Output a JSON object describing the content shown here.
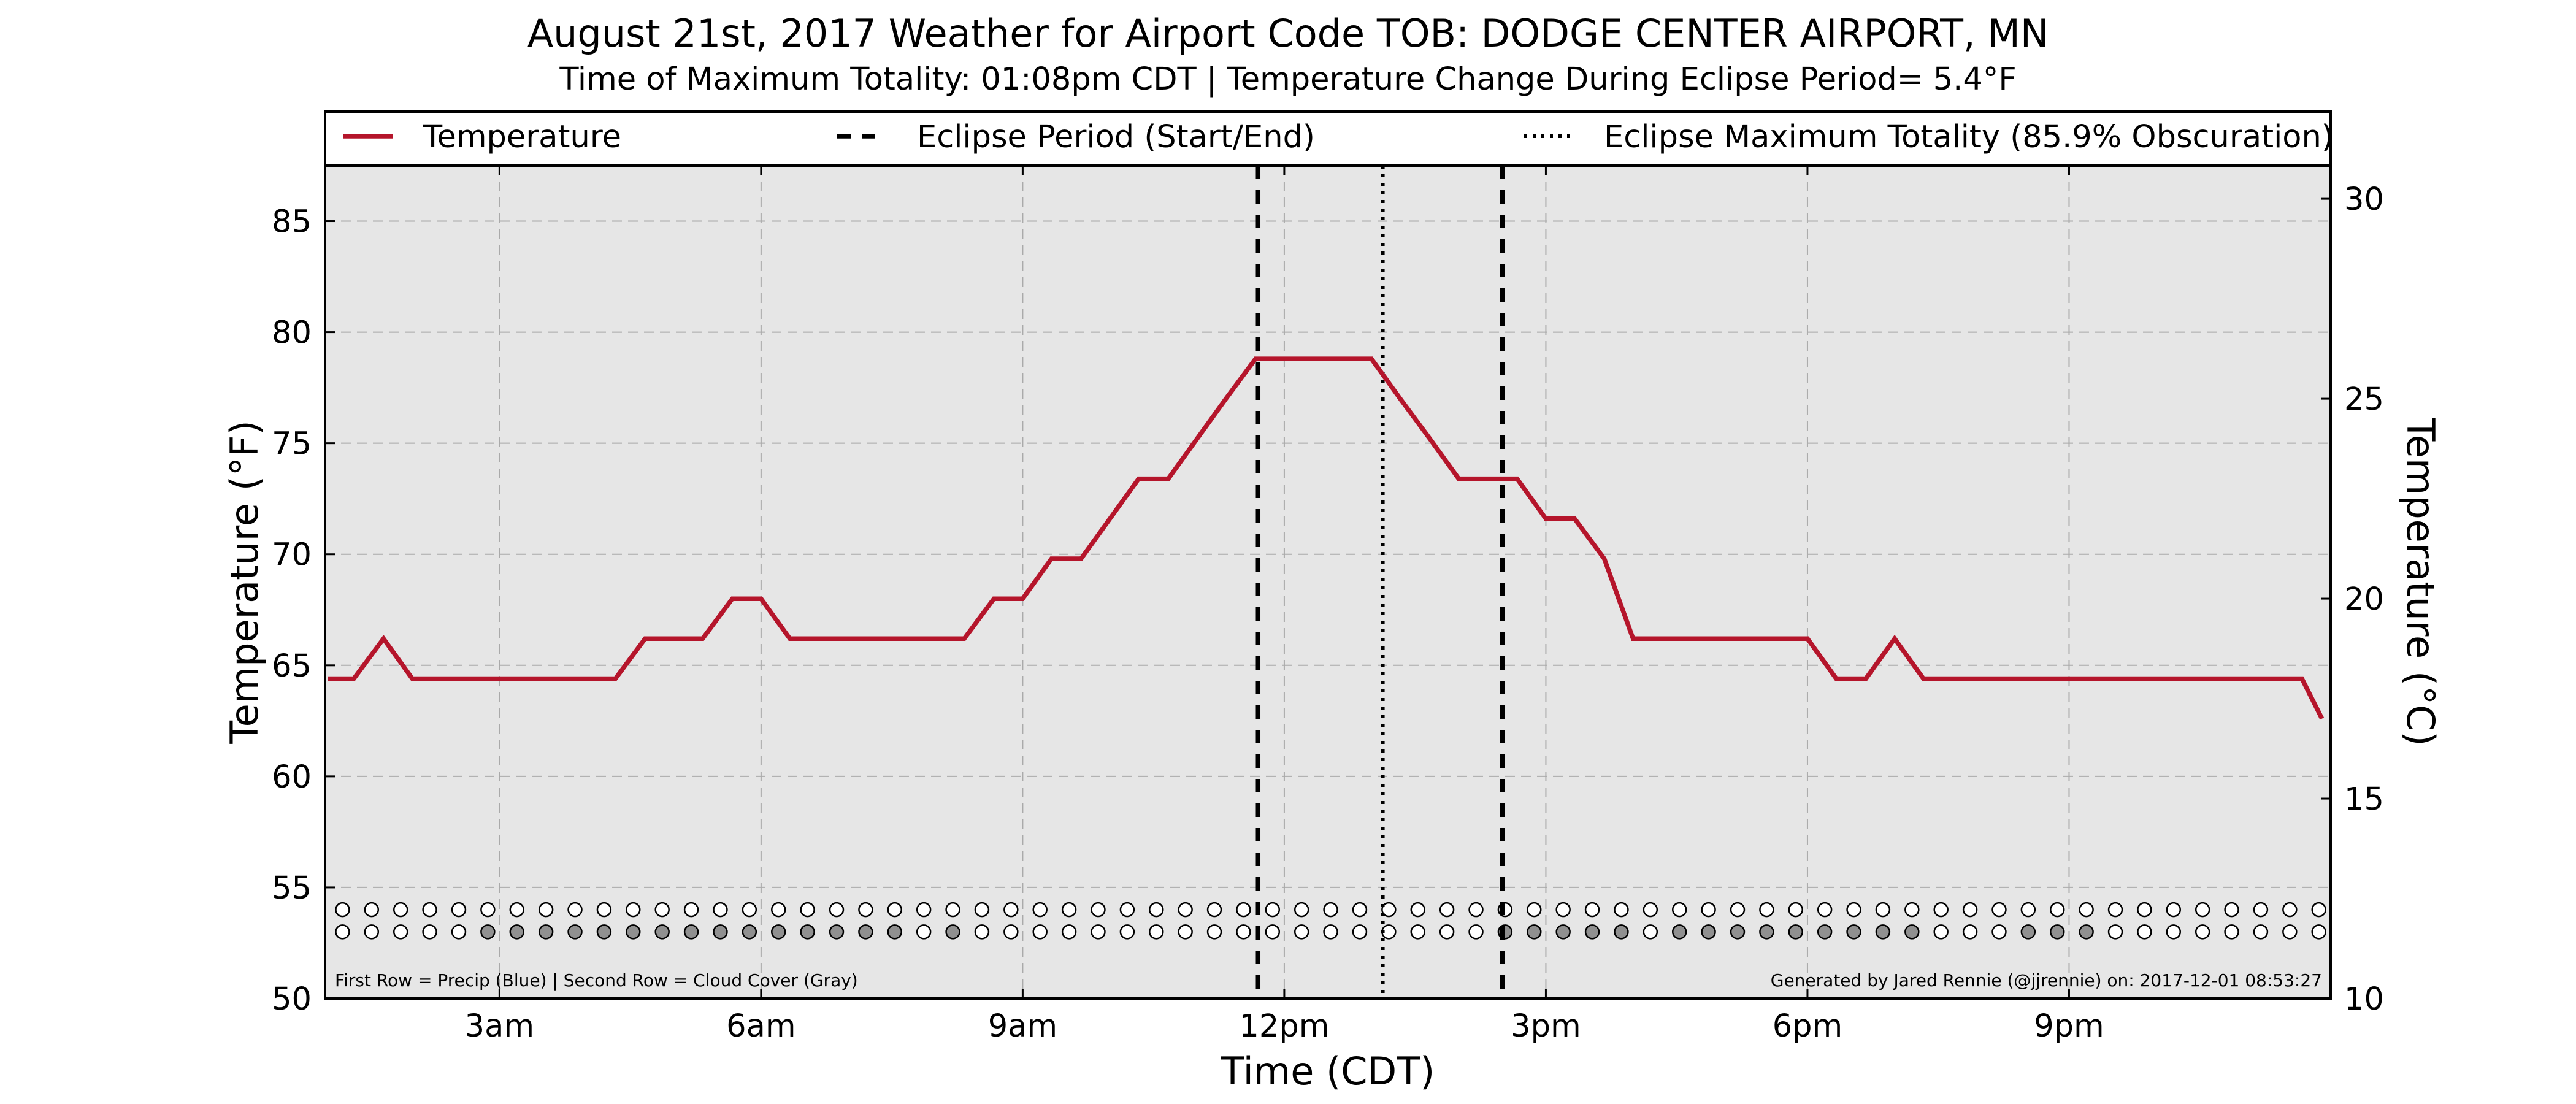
{
  "title": "August 21st, 2017 Weather for Airport Code TOB: DODGE CENTER AIRPORT, MN",
  "subtitle": "Time of Maximum Totality: 01:08pm CDT | Temperature Change During Eclipse Period= 5.4°F",
  "footnote_left": "First Row = Precip (Blue) | Second Row = Cloud Cover (Gray)",
  "footnote_right": "Generated by Jared Rennie (@jjrennie) on: 2017-12-01 08:53:27",
  "colors": {
    "temperature": "#b5152b",
    "plot_bg": "#e6e6e6",
    "grid": "#aaaaaa",
    "cloud_fill": "#909090",
    "empty_fill": "#ffffff"
  },
  "legend": {
    "placement": "top",
    "items": [
      {
        "label": "Temperature",
        "style": "solid"
      },
      {
        "label": "Eclipse Period (Start/End)",
        "style": "dashed"
      },
      {
        "label": "Eclipse Maximum Totality (85.9% Obscuration)",
        "style": "dotted"
      }
    ]
  },
  "chart_data": {
    "type": "line",
    "xlabel": "Time (CDT)",
    "ylabel": "Temperature ($^\\circ$F)",
    "ylabel_display": "Temperature (°F)",
    "ylabel_right": "Temperature (°C)",
    "xlim_hours": [
      1.0,
      24.0
    ],
    "ylim": [
      50,
      87.5
    ],
    "ylim_right": [
      10,
      30.83
    ],
    "grid": true,
    "x_ticks": [
      {
        "hour": 3,
        "label": "3am"
      },
      {
        "hour": 6,
        "label": "6am"
      },
      {
        "hour": 9,
        "label": "9am"
      },
      {
        "hour": 12,
        "label": "12pm"
      },
      {
        "hour": 15,
        "label": "3pm"
      },
      {
        "hour": 18,
        "label": "6pm"
      },
      {
        "hour": 21,
        "label": "9pm"
      }
    ],
    "y_ticks": [
      50,
      55,
      60,
      65,
      70,
      75,
      80,
      85
    ],
    "y_ticks_right": [
      10,
      15,
      20,
      25,
      30
    ],
    "series": [
      {
        "name": "Temperature",
        "x_hours": [
          1.03,
          1.33,
          1.67,
          2.0,
          2.33,
          2.67,
          3.0,
          3.33,
          3.67,
          4.0,
          4.33,
          4.67,
          5.0,
          5.33,
          5.67,
          6.0,
          6.33,
          6.67,
          7.0,
          7.33,
          7.67,
          8.0,
          8.33,
          8.67,
          9.0,
          9.33,
          9.67,
          10.0,
          10.33,
          10.67,
          11.0,
          11.33,
          11.67,
          12.0,
          12.33,
          12.67,
          13.0,
          13.33,
          13.67,
          14.0,
          14.33,
          14.67,
          15.0,
          15.33,
          15.67,
          16.0,
          16.33,
          16.67,
          17.0,
          17.33,
          17.67,
          18.0,
          18.33,
          18.67,
          19.0,
          19.33,
          19.67,
          20.0,
          20.33,
          20.67,
          21.0,
          21.33,
          21.67,
          22.0,
          22.33,
          22.67,
          23.0,
          23.33,
          23.67,
          23.9
        ],
        "values": [
          64.4,
          64.4,
          66.2,
          64.4,
          64.4,
          64.4,
          64.4,
          64.4,
          64.4,
          64.4,
          64.4,
          66.2,
          66.2,
          66.2,
          68.0,
          68.0,
          66.2,
          66.2,
          66.2,
          66.2,
          66.2,
          66.2,
          66.2,
          68.0,
          68.0,
          69.8,
          69.8,
          71.6,
          73.4,
          73.4,
          75.2,
          77.0,
          78.8,
          78.8,
          78.8,
          78.8,
          78.8,
          77.0,
          75.2,
          73.4,
          73.4,
          73.4,
          71.6,
          71.6,
          69.8,
          66.2,
          66.2,
          66.2,
          66.2,
          66.2,
          66.2,
          66.2,
          64.4,
          64.4,
          66.2,
          64.4,
          64.4,
          64.4,
          64.4,
          64.4,
          64.4,
          64.4,
          64.4,
          64.4,
          64.4,
          64.4,
          64.4,
          64.4,
          64.4,
          62.6
        ]
      }
    ],
    "eclipse_start_hour": 11.7,
    "eclipse_max_hour": 13.13,
    "eclipse_end_hour": 14.5,
    "obs_rows": {
      "precip_row_y": 54.0,
      "cloud_row_y": 53.0,
      "x_hours_start": 1.2,
      "x_hours_step": 0.3333,
      "count": 69,
      "precip_flags": [
        0,
        0,
        0,
        0,
        0,
        0,
        0,
        0,
        0,
        0,
        0,
        0,
        0,
        0,
        0,
        0,
        0,
        0,
        0,
        0,
        0,
        0,
        0,
        0,
        0,
        0,
        0,
        0,
        0,
        0,
        0,
        0,
        0,
        0,
        0,
        0,
        0,
        0,
        0,
        0,
        0,
        0,
        0,
        0,
        0,
        0,
        0,
        0,
        0,
        0,
        0,
        0,
        0,
        0,
        0,
        0,
        0,
        0,
        0,
        0,
        0,
        0,
        0,
        0,
        0,
        0,
        0,
        0,
        0
      ],
      "cloud_flags": [
        0,
        0,
        0,
        0,
        0,
        1,
        1,
        1,
        1,
        1,
        1,
        1,
        1,
        1,
        1,
        1,
        1,
        1,
        1,
        1,
        0,
        1,
        0,
        0,
        0,
        0,
        0,
        0,
        0,
        0,
        0,
        0,
        0,
        0,
        0,
        0,
        0,
        0,
        0,
        0,
        1,
        1,
        1,
        1,
        1,
        0,
        1,
        1,
        1,
        1,
        1,
        1,
        1,
        1,
        1,
        0,
        0,
        0,
        1,
        1,
        1,
        0,
        0,
        0,
        0,
        0,
        0,
        0,
        0
      ]
    }
  }
}
